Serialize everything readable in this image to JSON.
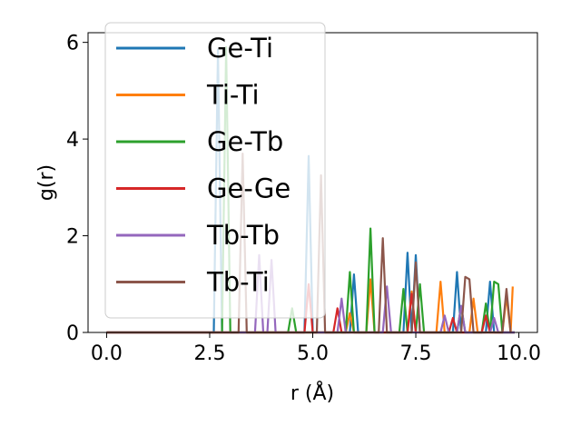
{
  "chart_data": {
    "type": "line",
    "xlabel": "r (Å)",
    "ylabel": "g(r)",
    "xlim": [
      -0.45,
      10.45
    ],
    "ylim": [
      0,
      6.2
    ],
    "xticks": [
      0.0,
      2.5,
      5.0,
      7.5,
      10.0
    ],
    "xtick_labels": [
      "0.0",
      "2.5",
      "5.0",
      "7.5",
      "10.0"
    ],
    "yticks": [
      0,
      2,
      4,
      6
    ],
    "ytick_labels": [
      "0",
      "2",
      "4",
      "6"
    ],
    "grid": false,
    "legend_position": "top-left",
    "series": [
      {
        "name": "Ge-Ti",
        "color": "#1f77b4",
        "x": [
          0,
          2.6,
          2.7,
          2.8,
          4.8,
          4.9,
          5.0,
          5.9,
          6.0,
          6.1,
          7.2,
          7.3,
          7.4,
          7.5,
          7.6,
          8.4,
          8.5,
          8.6,
          9.2,
          9.3,
          9.4,
          9.9
        ],
        "y": [
          0,
          0,
          5.85,
          0,
          0,
          3.65,
          0,
          0,
          1.2,
          0,
          0,
          1.65,
          0,
          1.6,
          0,
          0,
          1.25,
          0,
          0,
          1.05,
          0,
          0
        ]
      },
      {
        "name": "Ti-Ti",
        "color": "#ff7f0e",
        "x": [
          0,
          5.8,
          5.9,
          6.0,
          6.3,
          6.4,
          6.5,
          7.3,
          7.4,
          7.5,
          8.0,
          8.1,
          8.2,
          8.8,
          8.9,
          9.0,
          9.6,
          9.7,
          9.8,
          9.85
        ],
        "y": [
          0,
          0,
          0.4,
          0,
          0,
          1.1,
          0,
          0,
          0.85,
          0,
          0,
          1.05,
          0,
          0,
          0.7,
          0,
          0,
          0.75,
          0,
          0.95
        ]
      },
      {
        "name": "Ge-Tb",
        "color": "#2ca02c",
        "x": [
          0,
          2.8,
          2.9,
          3.0,
          4.4,
          4.5,
          4.6,
          5.8,
          5.9,
          6.0,
          6.3,
          6.4,
          6.5,
          7.1,
          7.2,
          7.3,
          7.5,
          7.6,
          7.7,
          8.5,
          8.6,
          8.7,
          9.1,
          9.2,
          9.3,
          9.4,
          9.5,
          9.6,
          9.9
        ],
        "y": [
          0,
          0,
          5.9,
          0,
          0,
          0.5,
          0,
          0,
          1.25,
          0,
          0,
          2.15,
          0,
          0,
          0.9,
          0,
          0,
          1.0,
          0,
          0,
          0.55,
          0,
          0,
          0.6,
          0,
          1.05,
          1.0,
          0,
          0
        ]
      },
      {
        "name": "Ge-Ge",
        "color": "#d62728",
        "x": [
          0,
          4.8,
          4.9,
          5.0,
          5.5,
          5.6,
          5.7,
          7.3,
          7.4,
          7.5,
          8.3,
          8.4,
          8.5,
          9.1,
          9.2,
          9.3,
          9.9
        ],
        "y": [
          0,
          0,
          1.0,
          0,
          0,
          0.5,
          0,
          0,
          0.8,
          0,
          0,
          0.3,
          0,
          0,
          0.35,
          0,
          0
        ]
      },
      {
        "name": "Tb-Tb",
        "color": "#9467bd",
        "x": [
          0,
          3.6,
          3.7,
          3.8,
          3.9,
          4.0,
          4.1,
          5.6,
          5.7,
          5.8,
          6.7,
          6.8,
          6.9,
          8.1,
          8.2,
          8.3,
          8.5,
          8.6,
          8.7,
          9.3,
          9.4,
          9.5,
          9.9
        ],
        "y": [
          0,
          0,
          1.6,
          0,
          0,
          1.5,
          0,
          0,
          0.7,
          0,
          0,
          0.95,
          0,
          0,
          0.35,
          0,
          0,
          0.55,
          0,
          0,
          0.3,
          0,
          0
        ]
      },
      {
        "name": "Tb-Ti",
        "color": "#8c564b",
        "x": [
          0,
          3.2,
          3.3,
          3.4,
          5.1,
          5.2,
          5.3,
          6.6,
          6.7,
          6.8,
          7.4,
          7.5,
          7.6,
          8.6,
          8.7,
          8.8,
          8.9,
          9.0,
          9.6,
          9.7,
          9.8
        ],
        "y": [
          0,
          0,
          3.7,
          0,
          0,
          3.25,
          0,
          0,
          1.95,
          0,
          0,
          1.45,
          0,
          0,
          1.15,
          1.1,
          0,
          0,
          0,
          0.9,
          0
        ]
      }
    ]
  }
}
